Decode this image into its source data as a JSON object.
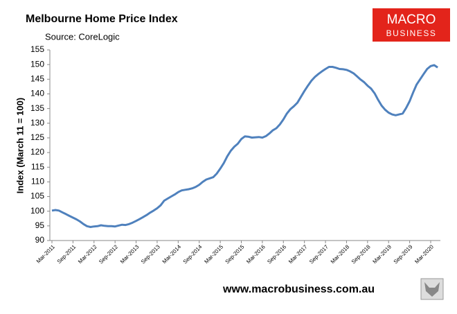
{
  "chart_data": {
    "type": "line",
    "title": "Melbourne Home Price Index",
    "subtitle": "Source: CoreLogic",
    "y_label": "Index (March 11 = 100)",
    "logo": {
      "line1": "MACRO",
      "line2": "BUSINESS"
    },
    "footer": "www.macrobusiness.com.au",
    "categories": [
      "Mar-2011",
      null,
      null,
      null,
      null,
      null,
      "Sep-2011",
      null,
      null,
      null,
      null,
      null,
      "Mar-2012",
      null,
      null,
      null,
      null,
      null,
      "Sep-2012",
      null,
      null,
      null,
      null,
      null,
      "Mar-2013",
      null,
      null,
      null,
      null,
      null,
      "Sep-2013",
      null,
      null,
      null,
      null,
      null,
      "Mar-2014",
      null,
      null,
      null,
      null,
      null,
      "Sep-2014",
      null,
      null,
      null,
      null,
      null,
      "Mar-2015",
      null,
      null,
      null,
      null,
      null,
      "Sep-2015",
      null,
      null,
      null,
      null,
      null,
      "Mar-2016",
      null,
      null,
      null,
      null,
      null,
      "Sep-2016",
      null,
      null,
      null,
      null,
      null,
      "Mar-2017",
      null,
      null,
      null,
      null,
      null,
      "Sep-2017",
      null,
      null,
      null,
      null,
      null,
      "Mar-2018",
      null,
      null,
      null,
      null,
      null,
      "Sep-2018",
      null,
      null,
      null,
      null,
      null,
      "Mar-2019",
      null,
      null,
      null,
      null,
      null,
      "Sep-2019",
      null,
      null,
      null,
      null,
      null,
      "Mar-2020",
      null,
      null
    ],
    "series": [
      {
        "name": "Melbourne",
        "color": "#4f81bd",
        "values": [
          100.2,
          100.4,
          100.2,
          99.6,
          99.0,
          98.4,
          97.8,
          97.2,
          96.5,
          95.6,
          94.9,
          94.6,
          94.8,
          94.9,
          95.2,
          95.0,
          94.9,
          94.9,
          94.8,
          95.1,
          95.4,
          95.3,
          95.6,
          96.1,
          96.7,
          97.3,
          98.0,
          98.7,
          99.5,
          100.2,
          101.0,
          102.0,
          103.6,
          104.3,
          105.0,
          105.7,
          106.5,
          107.1,
          107.3,
          107.5,
          107.8,
          108.3,
          109.0,
          110.0,
          110.8,
          111.2,
          111.6,
          112.8,
          114.5,
          116.4,
          118.7,
          120.6,
          122.0,
          123.0,
          124.6,
          125.5,
          125.4,
          125.1,
          125.2,
          125.3,
          125.1,
          125.6,
          126.5,
          127.6,
          128.3,
          129.6,
          131.3,
          133.3,
          134.8,
          135.8,
          137.0,
          139.0,
          141.0,
          142.8,
          144.5,
          145.8,
          146.8,
          147.7,
          148.5,
          149.2,
          149.2,
          148.9,
          148.5,
          148.4,
          148.2,
          147.7,
          147.0,
          146.0,
          144.9,
          144.0,
          142.8,
          141.8,
          140.2,
          138.0,
          136.0,
          134.6,
          133.6,
          133.0,
          132.7,
          133.0,
          133.3,
          135.2,
          137.5,
          140.5,
          143.2,
          145.0,
          146.8,
          148.5,
          149.5,
          149.8,
          149.0
        ]
      }
    ],
    "ylim": [
      90,
      155
    ],
    "yticks": [
      90,
      95,
      100,
      105,
      110,
      115,
      120,
      125,
      130,
      135,
      140,
      145,
      150,
      155
    ],
    "grid": false
  }
}
